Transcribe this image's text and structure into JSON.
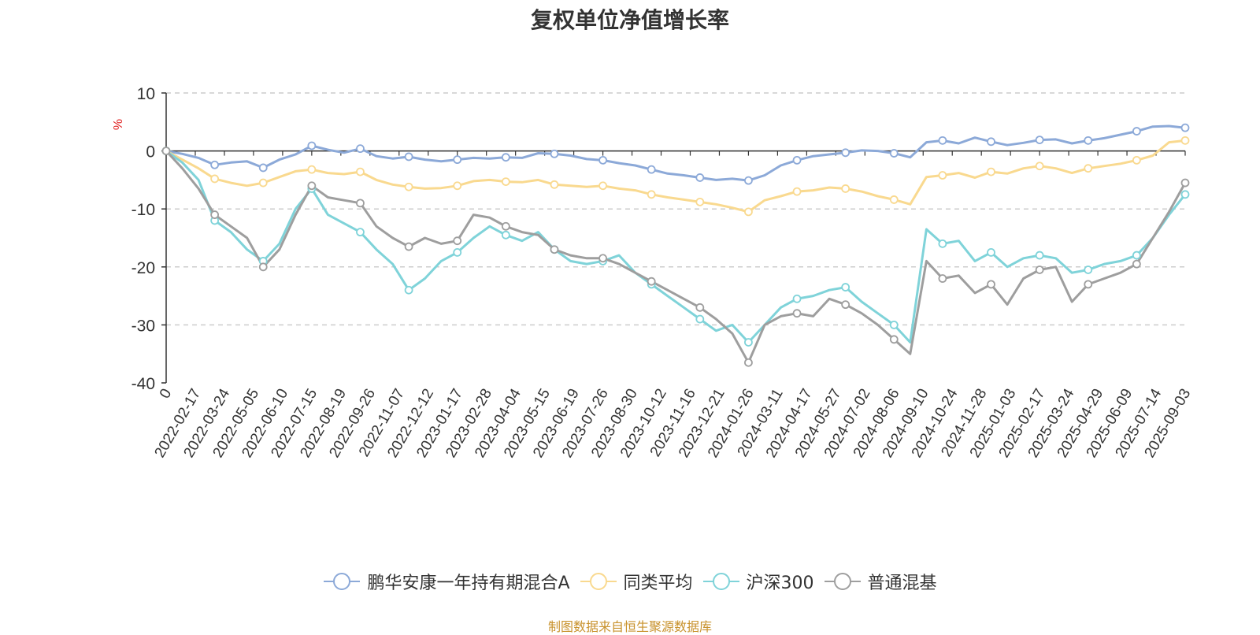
{
  "chart_data": {
    "type": "line",
    "title": "复权单位净值增长率",
    "ylabel": "%",
    "xlabel": "",
    "ylim": [
      -40,
      10
    ],
    "yticks": [
      10,
      0,
      -10,
      -20,
      -30,
      -40
    ],
    "grid": true,
    "legend_position": "bottom",
    "x_tick_labels": [
      "0",
      "2022-02-17",
      "2022-03-24",
      "2022-05-05",
      "2022-06-10",
      "2022-07-15",
      "2022-08-19",
      "2022-09-26",
      "2022-11-07",
      "2022-12-12",
      "2023-01-17",
      "2023-02-28",
      "2023-04-04",
      "2023-05-15",
      "2023-06-19",
      "2023-07-26",
      "2023-08-30",
      "2023-10-12",
      "2023-11-16",
      "2023-12-21",
      "2024-01-26",
      "2024-03-11",
      "2024-04-17",
      "2024-05-27",
      "2024-07-02",
      "2024-08-06",
      "2024-09-10",
      "2024-10-24",
      "2024-11-28",
      "2025-01-03",
      "2025-02-17",
      "2025-03-24",
      "2025-04-29",
      "2025-06-09",
      "2025-07-14",
      "2025-09-03"
    ],
    "series": [
      {
        "name": "鹏华安康一年持有期混合A",
        "color": "#8ca9d8",
        "values": [
          0,
          -0.5,
          -1.2,
          -2.4,
          -2.0,
          -1.8,
          -2.9,
          -1.5,
          -0.6,
          0.9,
          0.2,
          -0.3,
          0.4,
          -0.9,
          -1.3,
          -1.0,
          -1.5,
          -1.8,
          -1.5,
          -1.2,
          -1.3,
          -1.1,
          -1.2,
          -0.4,
          -0.5,
          -0.8,
          -1.4,
          -1.6,
          -2.1,
          -2.5,
          -3.2,
          -3.9,
          -4.2,
          -4.6,
          -5.0,
          -4.8,
          -5.1,
          -4.2,
          -2.5,
          -1.6,
          -0.9,
          -0.6,
          -0.3,
          0.1,
          0.0,
          -0.4,
          -1.1,
          1.5,
          1.8,
          1.3,
          2.3,
          1.6,
          1.0,
          1.4,
          1.9,
          2.0,
          1.3,
          1.8,
          2.2,
          2.8,
          3.4,
          4.2,
          4.3,
          4.0
        ]
      },
      {
        "name": "同类平均",
        "color": "#f9d98f",
        "values": [
          0,
          -1.5,
          -3.0,
          -4.8,
          -5.5,
          -6.0,
          -5.5,
          -4.5,
          -3.5,
          -3.2,
          -3.8,
          -4.0,
          -3.6,
          -5.0,
          -5.8,
          -6.2,
          -6.5,
          -6.4,
          -6.0,
          -5.2,
          -5.0,
          -5.3,
          -5.4,
          -5.0,
          -5.8,
          -6.0,
          -6.2,
          -6.0,
          -6.5,
          -6.8,
          -7.5,
          -8.0,
          -8.4,
          -8.8,
          -9.2,
          -9.8,
          -10.5,
          -8.5,
          -7.8,
          -7.0,
          -6.8,
          -6.3,
          -6.5,
          -7.0,
          -7.8,
          -8.4,
          -9.2,
          -4.5,
          -4.2,
          -3.8,
          -4.6,
          -3.6,
          -3.9,
          -3.0,
          -2.6,
          -3.0,
          -3.8,
          -3.0,
          -2.6,
          -2.2,
          -1.6,
          -0.8,
          1.5,
          1.8
        ]
      },
      {
        "name": "沪深300",
        "color": "#7fd3d9",
        "values": [
          0,
          -2.0,
          -5.0,
          -12.0,
          -14.0,
          -17.0,
          -19.0,
          -16.0,
          -10.0,
          -6.5,
          -11.0,
          -12.5,
          -14.0,
          -17.0,
          -19.5,
          -24.0,
          -22.0,
          -19.0,
          -17.5,
          -15.0,
          -13.0,
          -14.5,
          -15.5,
          -14.0,
          -17.0,
          -19.0,
          -19.5,
          -19.0,
          -18.0,
          -21.0,
          -23.0,
          -25.0,
          -27.0,
          -29.0,
          -31.0,
          -30.0,
          -33.0,
          -30.0,
          -27.0,
          -25.5,
          -25.0,
          -24.0,
          -23.5,
          -26.0,
          -28.0,
          -30.0,
          -33.0,
          -13.5,
          -16.0,
          -15.5,
          -19.0,
          -17.5,
          -20.0,
          -18.5,
          -18.0,
          -18.5,
          -21.0,
          -20.5,
          -19.5,
          -19.0,
          -18.0,
          -15.0,
          -11.0,
          -7.5
        ]
      },
      {
        "name": "普通混基",
        "color": "#9e9e9e",
        "values": [
          0,
          -3.0,
          -6.5,
          -11.0,
          -13.0,
          -15.0,
          -20.0,
          -17.0,
          -11.0,
          -6.0,
          -8.0,
          -8.5,
          -9.0,
          -13.0,
          -15.0,
          -16.5,
          -15.0,
          -16.0,
          -15.5,
          -11.0,
          -11.5,
          -13.0,
          -14.0,
          -14.5,
          -17.0,
          -18.0,
          -18.5,
          -18.5,
          -19.5,
          -21.0,
          -22.5,
          -24.0,
          -25.5,
          -27.0,
          -29.0,
          -31.5,
          -36.5,
          -30.0,
          -28.5,
          -28.0,
          -28.5,
          -25.5,
          -26.5,
          -28.0,
          -30.0,
          -32.5,
          -35.0,
          -19.0,
          -22.0,
          -21.5,
          -24.5,
          -23.0,
          -26.5,
          -22.0,
          -20.5,
          -20.0,
          -26.0,
          -23.0,
          -22.0,
          -21.0,
          -19.5,
          -15.0,
          -10.5,
          -5.5
        ]
      }
    ]
  },
  "source_note": "制图数据来自恒生聚源数据库"
}
